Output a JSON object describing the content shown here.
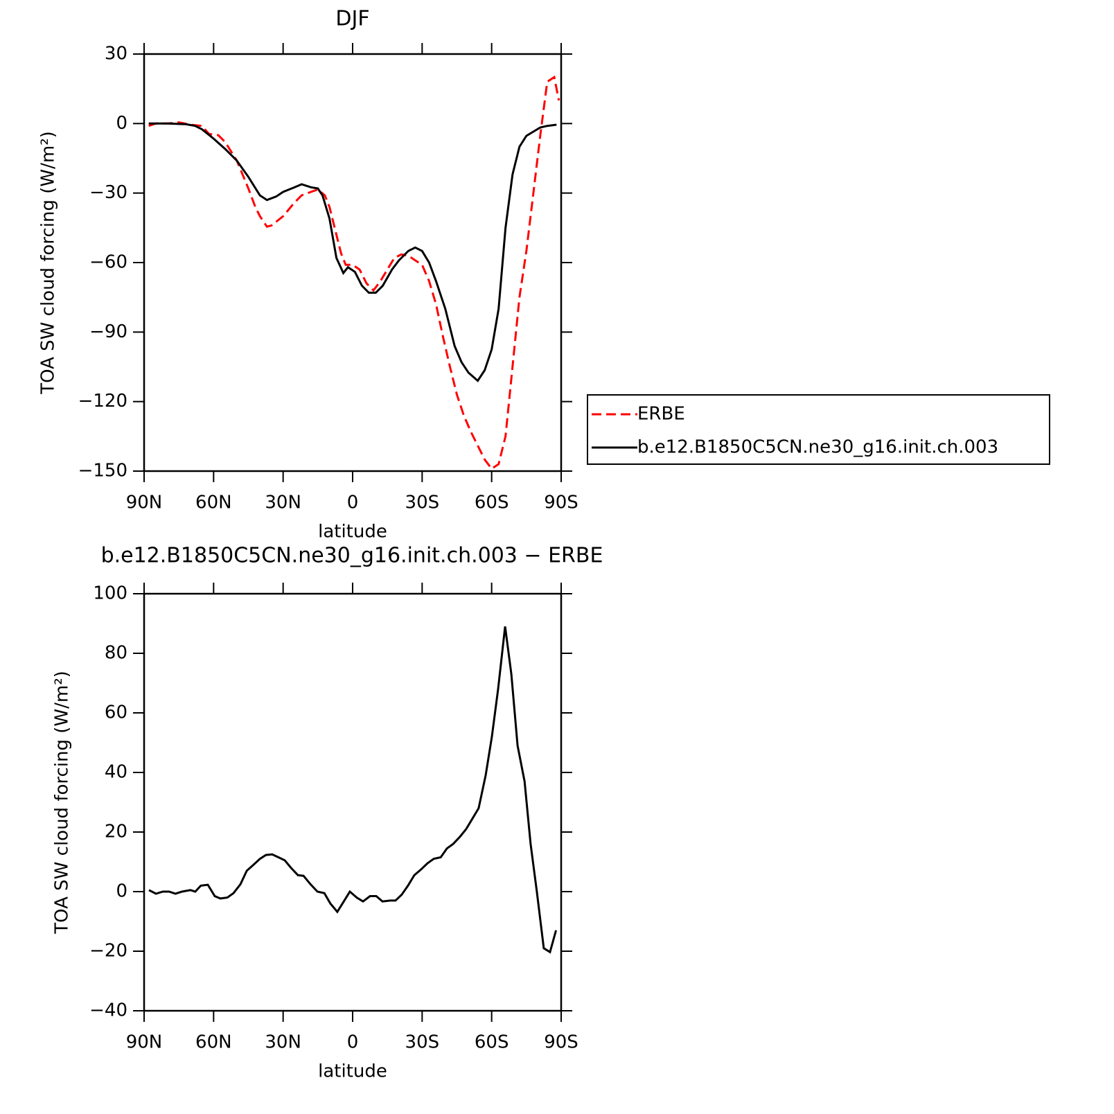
{
  "chart_data": [
    {
      "type": "line",
      "title": "DJF",
      "xlabel": "latitude",
      "ylabel": "TOA SW cloud forcing (W/m²)",
      "xlim": [
        90,
        -90
      ],
      "xticks": [
        {
          "value": 90,
          "label": "90N"
        },
        {
          "value": 60,
          "label": "60N"
        },
        {
          "value": 30,
          "label": "30N"
        },
        0,
        {
          "value": -30,
          "label": "30S"
        },
        {
          "value": -60,
          "label": "60S"
        },
        {
          "value": -90,
          "label": "90S"
        }
      ],
      "ylim": [
        -150,
        30
      ],
      "yticks": [
        30,
        0,
        -30,
        -60,
        -90,
        -120,
        -150
      ],
      "legend_position": "right",
      "series": [
        {
          "name": "ERBE",
          "color": "#ff0000",
          "dash": true,
          "x": [
            88,
            85,
            80,
            75,
            70,
            65,
            62,
            58,
            55,
            50,
            45,
            42,
            40,
            37,
            35,
            30,
            25,
            22,
            18,
            15,
            12,
            10,
            7,
            5,
            3,
            0,
            -3,
            -6,
            -9,
            -12,
            -15,
            -18,
            -21,
            -24,
            -27,
            -30,
            -33,
            -36,
            -39,
            -42,
            -45,
            -48,
            -51,
            -54,
            -57,
            -60,
            -63,
            -66,
            -69,
            -72,
            -75,
            -78,
            -81,
            -84,
            -87,
            -89
          ],
          "values": [
            -1,
            0,
            0,
            0.5,
            -0.5,
            -1,
            -4.5,
            -5,
            -8,
            -16,
            -28,
            -36,
            -40,
            -44.5,
            -44,
            -40,
            -34,
            -31,
            -29.5,
            -28.5,
            -31,
            -36,
            -48,
            -56,
            -61,
            -61,
            -63,
            -69,
            -72,
            -68,
            -63,
            -58,
            -56.5,
            -57,
            -59,
            -61,
            -68,
            -78,
            -92,
            -105,
            -117,
            -126,
            -133,
            -139,
            -145,
            -149,
            -147,
            -135,
            -105,
            -75,
            -55,
            -30,
            -5,
            18,
            20,
            10
          ]
        },
        {
          "name": "b.e12.B1850C5CN.ne30_g16.init.ch.003",
          "color": "#000000",
          "dash": false,
          "x": [
            88,
            80,
            72,
            68,
            65,
            60,
            55,
            50,
            45,
            40,
            37,
            33,
            30,
            25,
            22,
            18,
            15,
            13,
            10,
            7,
            4,
            2,
            -1,
            -4,
            -7,
            -10,
            -13,
            -17,
            -20,
            -24,
            -27,
            -30,
            -33,
            -36,
            -40,
            -44,
            -47,
            -50,
            -54,
            -57,
            -60,
            -63,
            -66,
            -69,
            -72,
            -75,
            -78,
            -81,
            -84,
            -88
          ],
          "values": [
            0,
            0,
            -0.3,
            -1,
            -2.5,
            -6.5,
            -11,
            -16,
            -23,
            -31,
            -33,
            -31.5,
            -29.5,
            -27.5,
            -26.2,
            -27.5,
            -28,
            -31,
            -41,
            -58,
            -64.5,
            -62,
            -64,
            -70,
            -73,
            -73,
            -70,
            -63,
            -59,
            -55,
            -53.5,
            -55,
            -60,
            -68,
            -80,
            -96,
            -103,
            -107.5,
            -111,
            -106.5,
            -97.5,
            -80,
            -45,
            -22,
            -10,
            -5.3,
            -3.5,
            -1.7,
            -1,
            -0.5
          ]
        }
      ]
    },
    {
      "type": "line",
      "title": "b.e12.B1850C5CN.ne30_g16.init.ch.003 − ERBE",
      "xlabel": "latitude",
      "ylabel": "TOA SW cloud forcing (W/m²)",
      "xlim": [
        90,
        -90
      ],
      "xticks": [
        {
          "value": 90,
          "label": "90N"
        },
        {
          "value": 60,
          "label": "60N"
        },
        {
          "value": 30,
          "label": "30N"
        },
        0,
        {
          "value": -30,
          "label": "30S"
        },
        {
          "value": -60,
          "label": "60S"
        },
        {
          "value": -90,
          "label": "90S"
        }
      ],
      "ylim": [
        -40,
        100
      ],
      "yticks": [
        100,
        80,
        60,
        40,
        20,
        0,
        -20,
        -40
      ],
      "series": [
        {
          "color": "#000000",
          "dash": false,
          "x": [
            87.9,
            84.9,
            81.9,
            79.2,
            76.5,
            73.6,
            70,
            67.9,
            65.5,
            62.5,
            59.5,
            57.1,
            54.1,
            51.4,
            48.4,
            45.7,
            42.8,
            40,
            37.4,
            34.7,
            32,
            29.3,
            26.6,
            23.6,
            21.2,
            18.2,
            15.2,
            12.2,
            9.6,
            6.6,
            3.6,
            1.2,
            -1.8,
            -4.5,
            -7.5,
            -10.2,
            -12.9,
            -16.2,
            -18.5,
            -21.2,
            -23.9,
            -26.6,
            -29.6,
            -32.3,
            -35,
            -38,
            -40.7,
            -43.4,
            -46.4,
            -49,
            -51.7,
            -54.4,
            -57.4,
            -60.1,
            -62.8,
            -65.8,
            -68.5,
            -71.2,
            -74.2,
            -76.8,
            -79.5,
            -82.5,
            -85.2,
            -87.8
          ],
          "values": [
            0.5,
            -0.7,
            0,
            0,
            -0.7,
            0,
            0.5,
            0,
            2,
            2.3,
            -1.5,
            -2.3,
            -2,
            -0.5,
            2.5,
            7,
            9,
            11,
            12.3,
            12.5,
            11.5,
            10.5,
            8,
            5.5,
            5.3,
            2.5,
            0,
            -0.5,
            -4,
            -6.8,
            -3,
            0,
            -2,
            -3.3,
            -1.5,
            -1.5,
            -3.3,
            -3,
            -3,
            -1,
            2,
            5.5,
            7.5,
            9.5,
            11,
            11.5,
            14.5,
            16,
            18.5,
            21,
            24.5,
            28,
            39,
            52,
            68,
            89,
            73,
            49,
            37,
            16,
            0,
            -19,
            -20.3,
            -13
          ]
        }
      ]
    }
  ]
}
